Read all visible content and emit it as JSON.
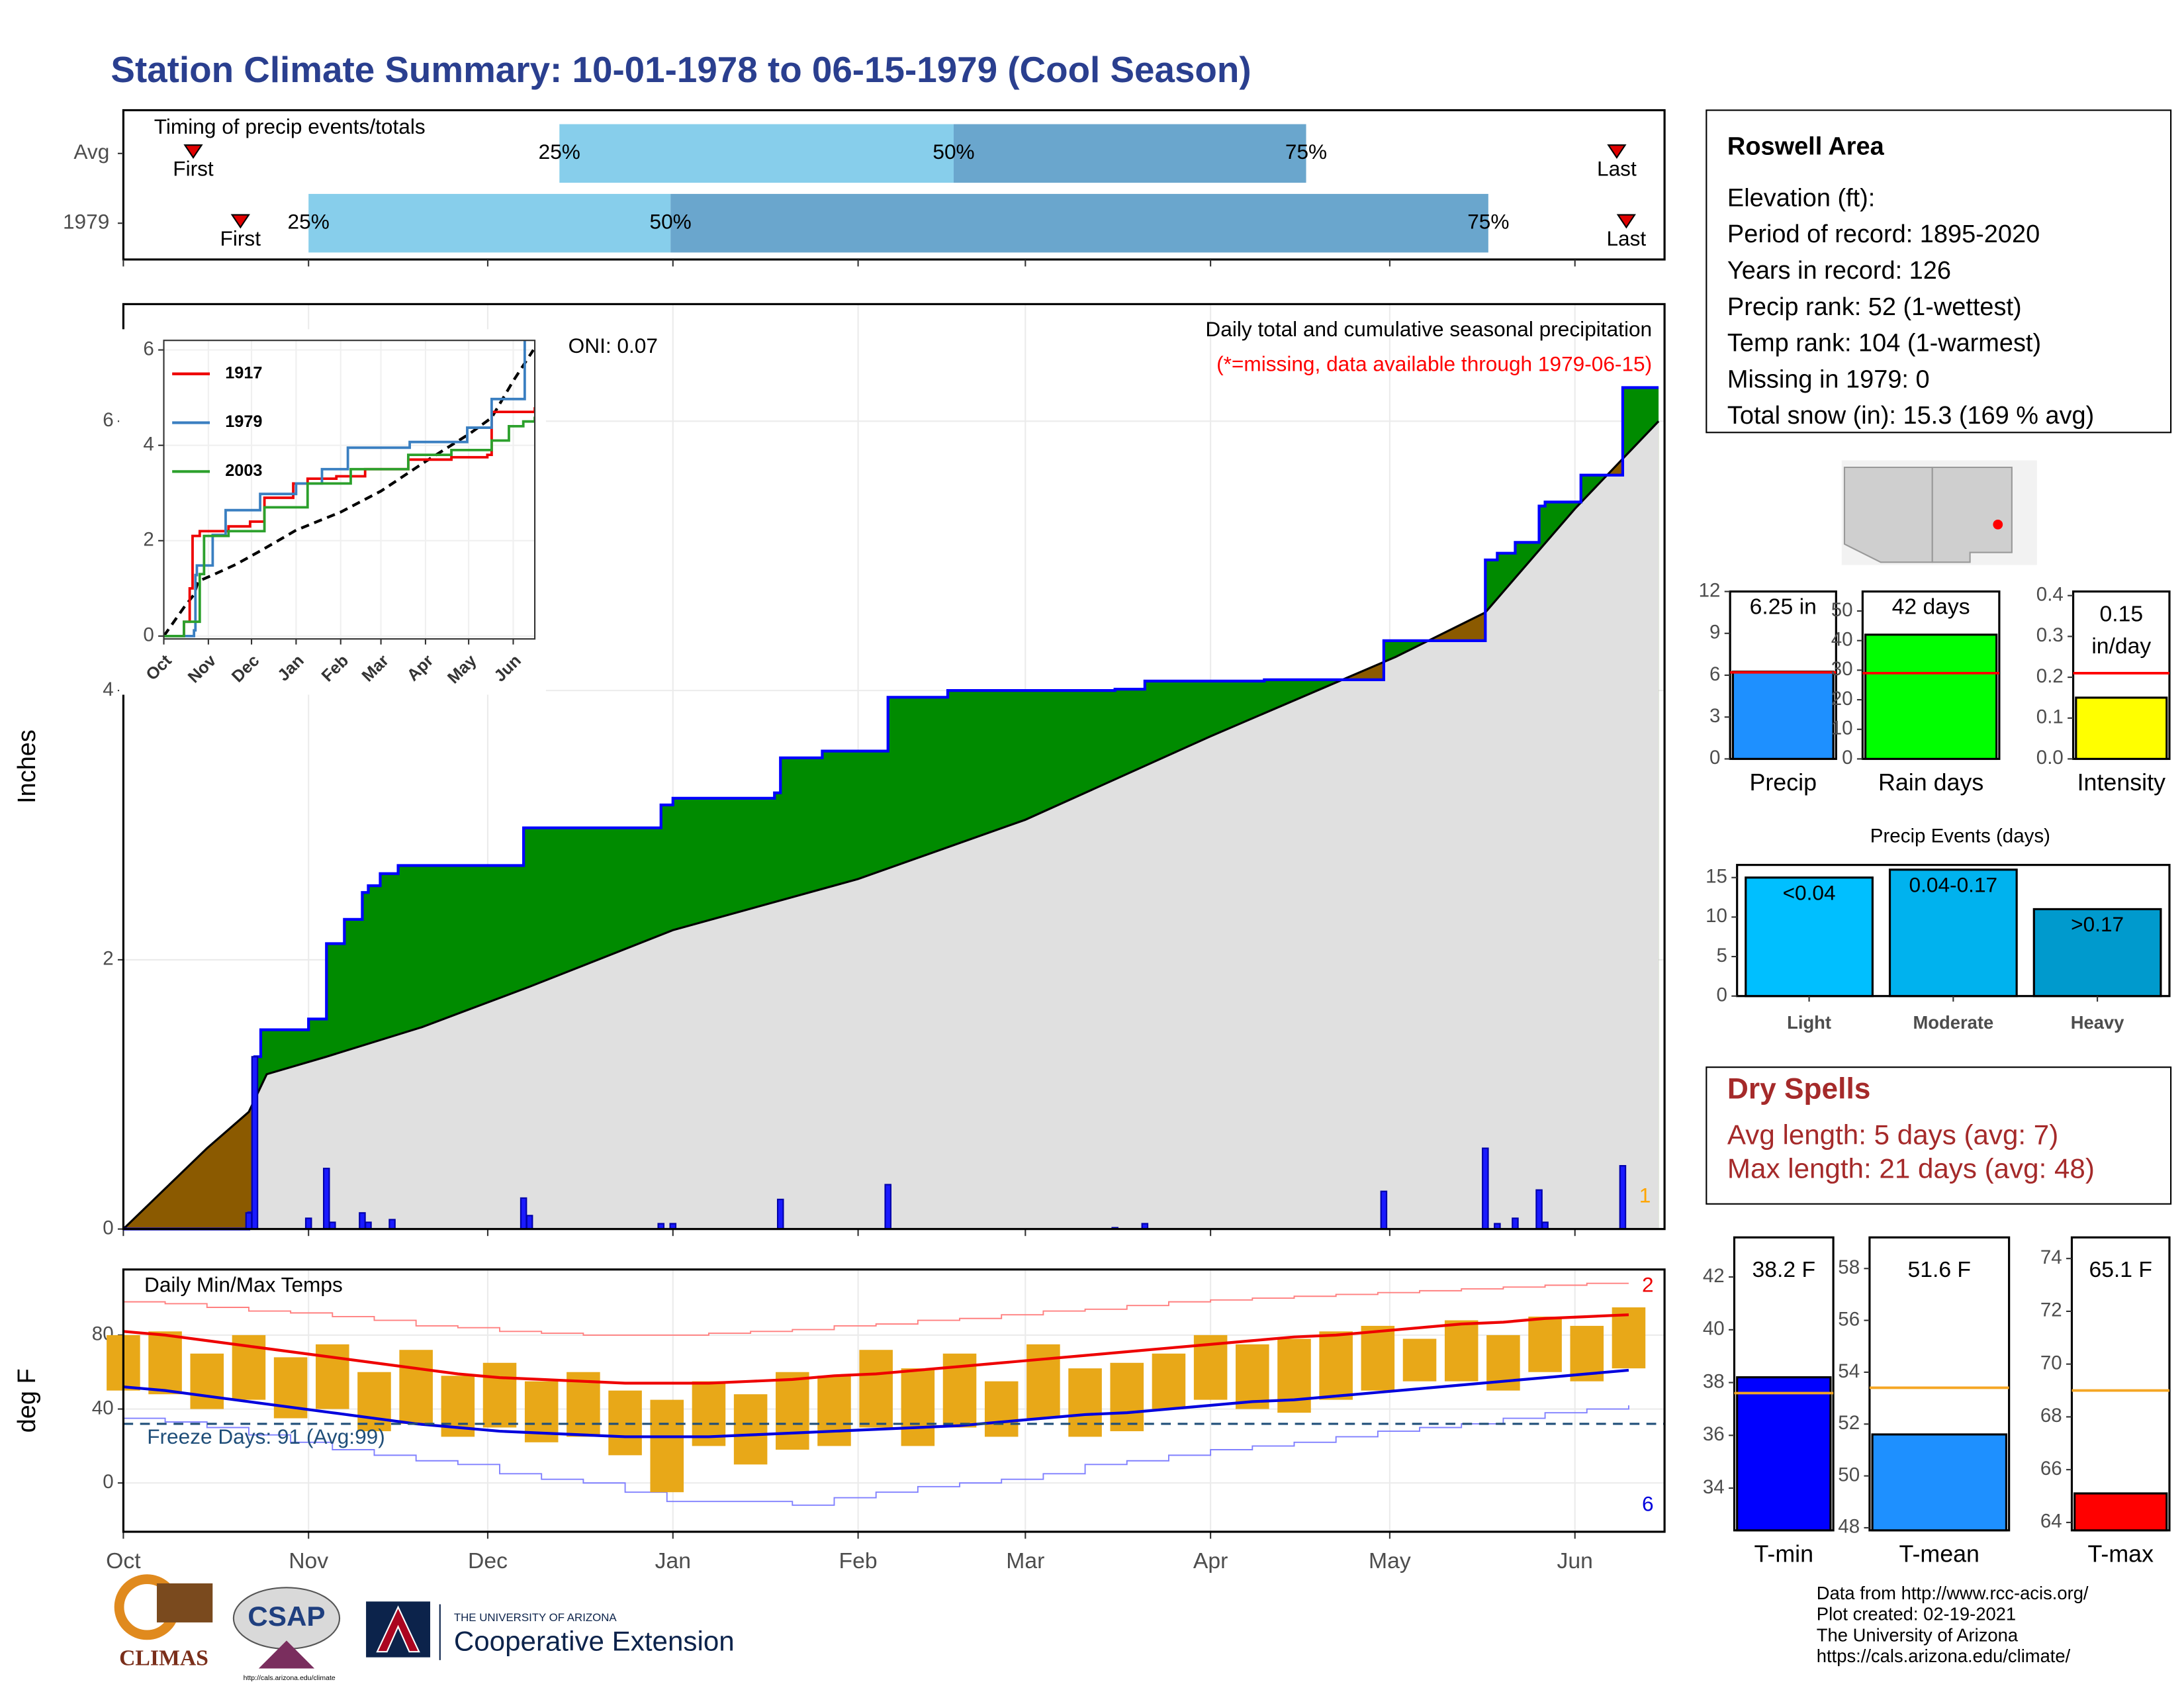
{
  "title": "Station Climate Summary: 10-01-1978 to 06-15-1979 (Cool Season)",
  "station": {
    "name": "Roswell Area",
    "lines": [
      "Elevation (ft):",
      "Period of record: 1895-2020",
      "Years in record: 126",
      "Precip rank: 52 (1-wettest)",
      "Temp rank: 104 (1-warmest)",
      "Missing in 1979: 0",
      "Total snow (in): 15.3 (169 % avg)"
    ]
  },
  "dry_spells": {
    "title": "Dry Spells",
    "lines": [
      "Avg length: 5 days (avg: 7)",
      "Max length: 21 days (avg: 48)"
    ]
  },
  "credits": [
    "Data from http://www.rcc-acis.org/",
    "Plot created: 02-19-2021",
    "The University of Arizona",
    "https://cals.arizona.edu/climate/"
  ],
  "logos": {
    "climas": "CLIMAS",
    "csap": "CSAP",
    "csap_url": "http://cals.arizona.edu/climate",
    "university": "THE UNIVERSITY OF ARIZONA",
    "extension": "Cooperative Extension"
  },
  "chart_data": [
    {
      "type": "timing",
      "title": "Timing of precip events/totals",
      "xlim": [
        0,
        258
      ],
      "labels": {
        "first": "First",
        "last": "Last",
        "q25": "25%",
        "q50": "50%",
        "q75": "75%"
      },
      "colors": {
        "lower": "#87ceeb",
        "upper": "#6aa6cd",
        "marker": "#e00000"
      },
      "rows": [
        {
          "name": "Avg",
          "first": 11.7,
          "q25": 73,
          "q50": 139,
          "q75": 198,
          "last": 250
        },
        {
          "name": "1979",
          "first": 19.6,
          "q25": 31,
          "q50": 91.6,
          "q75": 228.5,
          "last": 251.6
        }
      ]
    },
    {
      "type": "precip",
      "ylabel": "Inches",
      "xlim": [
        0,
        258
      ],
      "ylim": [
        0,
        6.87
      ],
      "yticks": [
        0,
        2,
        4,
        6
      ],
      "grid": true,
      "annotations": {
        "oni": "ONI: 0.07",
        "subtitle": "Daily total and cumulative seasonal precipitation",
        "missing": "(*=missing, data available through 1979-06-15)",
        "count": "1"
      },
      "colors": {
        "line": "#0000ff",
        "surplus": "#008b00",
        "deficit": "#8b5a00",
        "average": "#e0e0e0",
        "daily": "#1a1aff",
        "missing": "#ff0000",
        "count": "#ffa500"
      },
      "cumulative": {
        "x": [
          0,
          21,
          22,
          23,
          31,
          34,
          37,
          40,
          41,
          43,
          46,
          67,
          90,
          92,
          109,
          110,
          117,
          128,
          138,
          166,
          171,
          191,
          211,
          228,
          230,
          233,
          237,
          238,
          244,
          251,
          257
        ],
        "values": [
          0,
          0.12,
          1.28,
          1.48,
          1.56,
          2.12,
          2.3,
          2.5,
          2.55,
          2.64,
          2.7,
          2.98,
          3.15,
          3.2,
          3.24,
          3.5,
          3.55,
          3.95,
          4.0,
          4.01,
          4.07,
          4.08,
          4.37,
          4.97,
          5.02,
          5.1,
          5.37,
          5.4,
          5.6,
          6.25,
          6.25
        ]
      },
      "average": {
        "x": [
          0,
          7,
          14,
          21,
          24,
          34,
          50,
          68,
          92,
          123,
          151,
          182,
          213,
          228,
          243,
          257
        ],
        "values": [
          0,
          0.3,
          0.6,
          0.87,
          1.15,
          1.28,
          1.5,
          1.8,
          2.22,
          2.6,
          3.04,
          3.66,
          4.25,
          4.58,
          5.35,
          6.0
        ]
      },
      "daily": {
        "x": [
          21,
          22,
          31,
          34,
          35,
          40,
          41,
          45,
          67,
          68,
          90,
          92,
          110,
          128,
          166,
          171,
          211,
          228,
          230,
          233,
          237,
          238,
          251
        ],
        "values": [
          0.12,
          1.28,
          0.08,
          0.45,
          0.05,
          0.12,
          0.05,
          0.07,
          0.23,
          0.1,
          0.04,
          0.04,
          0.22,
          0.33,
          0.01,
          0.04,
          0.28,
          0.6,
          0.04,
          0.08,
          0.29,
          0.05,
          0.47
        ]
      }
    },
    {
      "type": "line",
      "xlim": [
        0,
        258
      ],
      "ylim": [
        -0.06,
        6.2
      ],
      "yticks": [
        0,
        2,
        4,
        6
      ],
      "xticks": [
        {
          "value": 0,
          "label": "Oct"
        },
        {
          "value": 31,
          "label": "Nov"
        },
        {
          "value": 61,
          "label": "Dec"
        },
        {
          "value": 92,
          "label": "Jan"
        },
        {
          "value": 123,
          "label": "Feb"
        },
        {
          "value": 151,
          "label": "Mar"
        },
        {
          "value": 182,
          "label": "Apr"
        },
        {
          "value": 212,
          "label": "May"
        },
        {
          "value": 243,
          "label": "Jun"
        }
      ],
      "series": [
        {
          "name": "1917",
          "color": "#ee0000",
          "x": [
            0,
            14,
            18,
            20,
            25,
            45,
            60,
            70,
            90,
            100,
            120,
            140,
            170,
            200,
            225,
            228,
            258
          ],
          "values": [
            0,
            0.3,
            1.0,
            2.1,
            2.2,
            2.3,
            2.4,
            2.9,
            3.2,
            3.3,
            3.35,
            3.5,
            3.7,
            3.75,
            3.8,
            4.7,
            4.8
          ]
        },
        {
          "name": "1979",
          "color": "#3a7fc1",
          "x": [
            0,
            21,
            22,
            23,
            34,
            43,
            67,
            92,
            110,
            128,
            171,
            211,
            228,
            251,
            258
          ],
          "values": [
            0,
            0.12,
            1.28,
            1.48,
            2.12,
            2.64,
            2.98,
            3.2,
            3.5,
            3.95,
            4.07,
            4.37,
            4.97,
            6.25,
            6.25
          ]
        },
        {
          "name": "2003",
          "color": "#2ca02c",
          "x": [
            0,
            14,
            25,
            28,
            45,
            70,
            100,
            130,
            170,
            200,
            228,
            240,
            250,
            258
          ],
          "values": [
            0,
            0.3,
            1.3,
            2.1,
            2.2,
            2.7,
            3.2,
            3.5,
            3.8,
            3.9,
            4.1,
            4.4,
            4.5,
            4.6
          ]
        }
      ]
    },
    {
      "type": "temps",
      "title": "Daily Min/Max Temps",
      "ylabel": "deg F",
      "xlim": [
        0,
        258
      ],
      "ylim": [
        -26.4,
        115.5
      ],
      "yticks": [
        0,
        40,
        80
      ],
      "grid": true,
      "xticks": [
        {
          "value": 0,
          "label": "Oct"
        },
        {
          "value": 31,
          "label": "Nov"
        },
        {
          "value": 61,
          "label": "Dec"
        },
        {
          "value": 92,
          "label": "Jan"
        },
        {
          "value": 123,
          "label": "Feb"
        },
        {
          "value": 151,
          "label": "Mar"
        },
        {
          "value": 182,
          "label": "Apr"
        },
        {
          "value": 212,
          "label": "May"
        },
        {
          "value": 243,
          "label": "Jun"
        }
      ],
      "freeze": 32,
      "freeze_label": "Freeze Days: 91 (Avg:99)",
      "record_high_count": 2,
      "record_low_count": 6,
      "colors": {
        "bar": "#e8a818",
        "normal_max": "#ee0000",
        "normal_min": "#0000dd",
        "record_high": "#ff8080",
        "record_low": "#8080ff",
        "freeze": "#1f4e79"
      },
      "x": [
        0,
        7,
        14,
        21,
        28,
        35,
        42,
        49,
        56,
        63,
        70,
        77,
        84,
        91,
        98,
        105,
        112,
        119,
        126,
        133,
        140,
        147,
        154,
        161,
        168,
        175,
        182,
        189,
        196,
        203,
        210,
        217,
        224,
        231,
        238,
        245,
        252
      ],
      "max": [
        80,
        82,
        70,
        80,
        68,
        75,
        60,
        72,
        58,
        65,
        55,
        60,
        50,
        45,
        55,
        48,
        60,
        58,
        72,
        62,
        70,
        55,
        75,
        62,
        65,
        70,
        80,
        75,
        78,
        82,
        85,
        78,
        88,
        80,
        90,
        85,
        95
      ],
      "min": [
        50,
        48,
        40,
        45,
        35,
        40,
        28,
        32,
        25,
        30,
        22,
        25,
        15,
        -5,
        20,
        10,
        18,
        20,
        30,
        20,
        30,
        25,
        35,
        25,
        28,
        40,
        45,
        40,
        38,
        45,
        50,
        55,
        55,
        50,
        60,
        55,
        62
      ],
      "normal_max": [
        82,
        80,
        77,
        74,
        71,
        68,
        65,
        62,
        59,
        57,
        56,
        55,
        54,
        54,
        54,
        55,
        56,
        58,
        59,
        61,
        63,
        65,
        67,
        69,
        71,
        73,
        75,
        77,
        79,
        80,
        82,
        84,
        86,
        87,
        89,
        90,
        91
      ],
      "normal_min": [
        52,
        50,
        47,
        44,
        41,
        38,
        35,
        32,
        30,
        28,
        27,
        26,
        25,
        25,
        25,
        26,
        27,
        28,
        29,
        30,
        31,
        33,
        35,
        37,
        38,
        40,
        42,
        44,
        45,
        47,
        49,
        51,
        53,
        55,
        57,
        59,
        61
      ],
      "record_high": [
        98,
        97,
        95,
        93,
        92,
        90,
        88,
        85,
        84,
        82,
        81,
        80,
        80,
        80,
        81,
        82,
        83,
        85,
        86,
        88,
        89,
        91,
        93,
        94,
        96,
        98,
        99,
        100,
        101,
        102,
        103,
        104,
        105,
        106,
        107,
        108,
        108
      ],
      "record_low": [
        35,
        33,
        30,
        26,
        22,
        18,
        15,
        12,
        10,
        5,
        2,
        0,
        -5,
        -10,
        -10,
        -10,
        -12,
        -8,
        -5,
        -2,
        0,
        2,
        5,
        10,
        12,
        15,
        18,
        20,
        22,
        25,
        28,
        30,
        32,
        35,
        38,
        40,
        42
      ]
    },
    {
      "type": "summary_bar",
      "xlabel": "Precip",
      "values": [
        6.25
      ],
      "value_labels": [
        "6.25 in"
      ],
      "average": 6.2,
      "color": "#1e90ff",
      "average_color": "#ff0000",
      "ylim": [
        0,
        12
      ],
      "yticks": [
        0,
        3,
        6,
        9,
        12
      ]
    },
    {
      "type": "summary_bar",
      "xlabel": "Rain days",
      "values": [
        42
      ],
      "value_labels": [
        "42 days"
      ],
      "average": 29,
      "color": "#00ff00",
      "average_color": "#ff0000",
      "ylim": [
        0,
        56.6
      ],
      "yticks": [
        0,
        10,
        20,
        30,
        40,
        50
      ]
    },
    {
      "type": "summary_bar",
      "xlabel": "Intensity",
      "values": [
        0.15
      ],
      "value_labels": [
        "0.15 in/day"
      ],
      "average": 0.21,
      "color": "#ffff00",
      "average_color": "#ff0000",
      "ylim": [
        0,
        0.41
      ],
      "yticks": [
        {
          "value": 0,
          "label": "0.0"
        },
        0.1,
        0.2,
        0.3,
        0.4
      ]
    },
    {
      "type": "bar",
      "title": "Precip Events (days)",
      "categories": [
        "Light",
        "Moderate",
        "Heavy"
      ],
      "values": [
        15,
        16,
        11
      ],
      "bin_labels": [
        "<0.04",
        "0.04-0.17",
        ">0.17"
      ],
      "colors": [
        "#00bfff",
        "#00b2ee",
        "#009acd"
      ],
      "ylim": [
        0,
        16.6
      ],
      "yticks": [
        0,
        5,
        10,
        15
      ]
    },
    {
      "type": "summary_bar",
      "xlabel": "T-min",
      "values": [
        38.2
      ],
      "value_labels": [
        "38.2 F"
      ],
      "average": 37.6,
      "color": "#0000ff",
      "average_color": "#f5a623",
      "ylim": [
        32.4,
        43.5
      ],
      "yticks": [
        34,
        36,
        38,
        40,
        42
      ]
    },
    {
      "type": "summary_bar",
      "xlabel": "T-mean",
      "values": [
        51.6
      ],
      "value_labels": [
        "51.6 F"
      ],
      "average": 53.4,
      "color": "#1e90ff",
      "average_color": "#f5a623",
      "ylim": [
        47.9,
        59.2
      ],
      "yticks": [
        48,
        50,
        52,
        54,
        56,
        58
      ]
    },
    {
      "type": "summary_bar",
      "xlabel": "T-max",
      "values": [
        65.1
      ],
      "value_labels": [
        "65.1 F"
      ],
      "average": 69.0,
      "color": "#ff0000",
      "average_color": "#f5a623",
      "ylim": [
        63.7,
        74.8
      ],
      "yticks": [
        64,
        66,
        68,
        70,
        72,
        74
      ]
    }
  ]
}
